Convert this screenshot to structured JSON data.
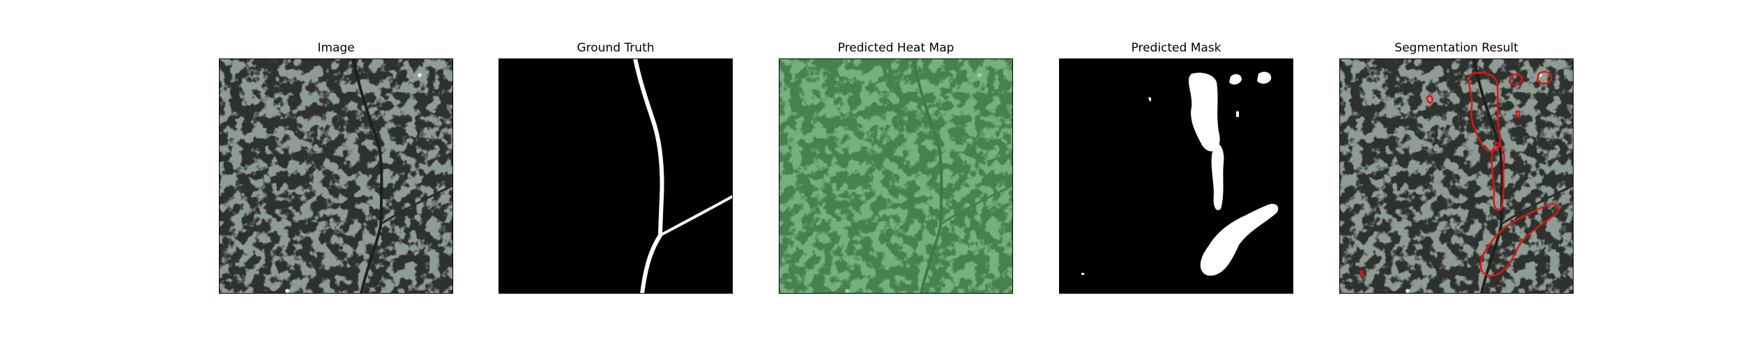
{
  "panels": [
    {
      "id": "image",
      "title": "Image"
    },
    {
      "id": "ground-truth",
      "title": "Ground Truth"
    },
    {
      "id": "heatmap",
      "title": "Predicted Heat Map"
    },
    {
      "id": "mask",
      "title": "Predicted Mask"
    },
    {
      "id": "segmentation",
      "title": "Segmentation Result"
    }
  ],
  "colors": {
    "texture_light": "#8e9a94",
    "texture_dark": "#2e302e",
    "heatmap_tint": "#6dc57a",
    "mask_fg": "#ffffff",
    "mask_bg": "#000000",
    "contour": "#e01414"
  }
}
